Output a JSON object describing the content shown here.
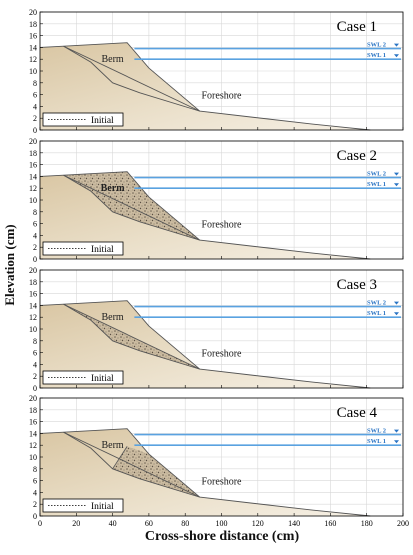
{
  "figure": {
    "ylabel": "Elevation (cm)",
    "xlabel": "Cross-shore distance (cm)",
    "x_ticks": [
      "0",
      "20",
      "40",
      "60",
      "80",
      "100",
      "120",
      "140",
      "160",
      "180",
      "200"
    ],
    "y_ticks": [
      "0",
      "2",
      "4",
      "6",
      "8",
      "10",
      "12",
      "14",
      "16",
      "18",
      "20"
    ],
    "legend_label": "Initial",
    "swl1_label": "SWL 1",
    "swl2_label": "SWL 2",
    "berm_label": "Berm",
    "foreshore_label": "Foreshore",
    "colors": {
      "profile_fill": "#e9dcc4",
      "water_line": "#5aa2e0",
      "profile_line": "#555555",
      "grid": "#d8d8d8"
    }
  },
  "panels": [
    {
      "title": "Case 1",
      "gravel": "none",
      "berm_bold": false
    },
    {
      "title": "Case 2",
      "gravel": "full",
      "berm_bold": true
    },
    {
      "title": "Case 3",
      "gravel": "lower",
      "berm_bold": false
    },
    {
      "title": "Case 4",
      "gravel": "front",
      "berm_bold": false
    }
  ],
  "chart_data": {
    "type": "area",
    "xlabel": "Cross-shore distance (cm)",
    "ylabel": "Elevation (cm)",
    "xlim": [
      0,
      200
    ],
    "ylim": [
      0,
      20
    ],
    "grid": true,
    "water_levels": [
      {
        "name": "SWL 1",
        "y": 12
      },
      {
        "name": "SWL 2",
        "y": 13.8
      }
    ],
    "initial_profile": {
      "x": [
        0,
        13,
        48,
        60,
        88,
        150,
        182
      ],
      "y": [
        14,
        14.2,
        14.8,
        10.5,
        3.2,
        1.0,
        0
      ]
    },
    "inner_boundary": {
      "x": [
        13,
        28,
        40,
        55,
        88
      ],
      "y": [
        14.2,
        11.5,
        8.0,
        6.3,
        3.2
      ]
    }
  }
}
